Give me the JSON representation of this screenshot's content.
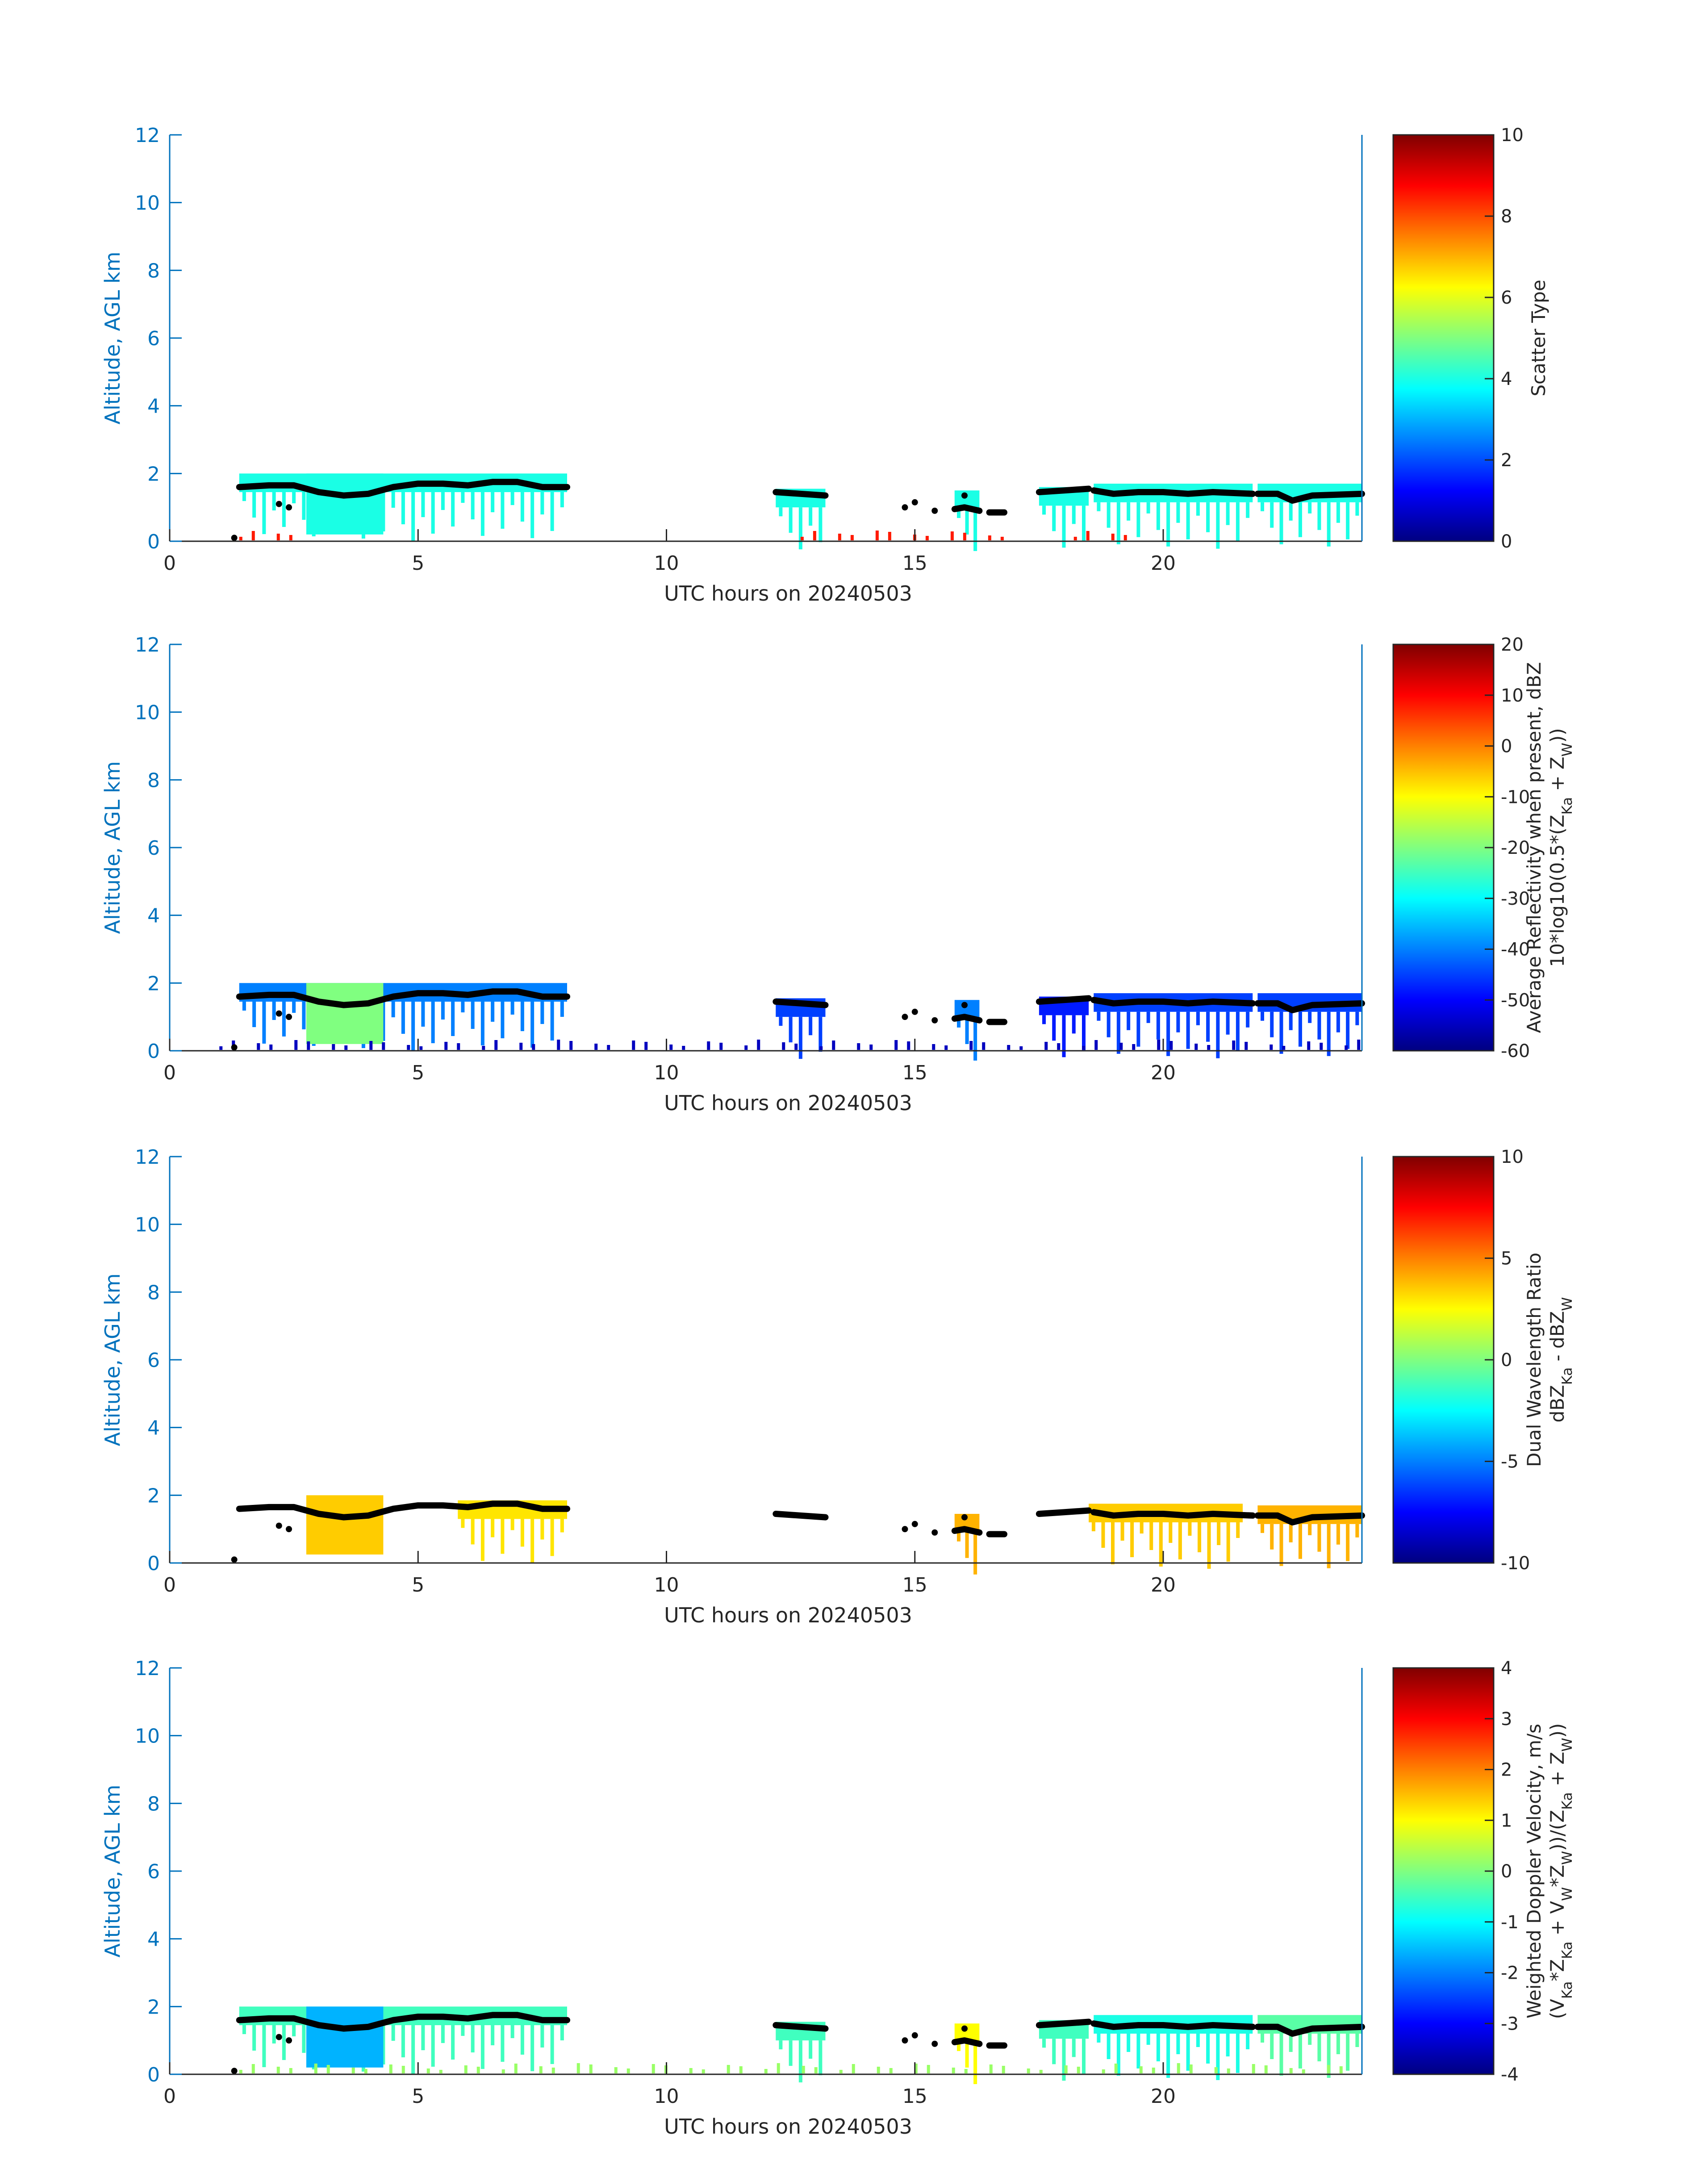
{
  "figure": {
    "date_label": "UTC hours on 20240503",
    "ylabel": "Altitude, AGL km"
  },
  "chart_data": [
    {
      "type": "heatmap",
      "xlabel": "UTC hours on 20240503",
      "ylabel": "Altitude, AGL km",
      "xlim": [
        0,
        24
      ],
      "ylim": [
        0,
        12
      ],
      "xticks": [
        0,
        5,
        10,
        15,
        20
      ],
      "yticks": [
        0,
        2,
        4,
        6,
        8,
        10,
        12
      ],
      "colorbar": {
        "label_lines": [
          "Scatter Type"
        ],
        "clim": [
          0,
          10
        ],
        "ticks": [
          0,
          2,
          4,
          6,
          8,
          10
        ],
        "tick_labels": [
          "0",
          "2",
          "4",
          "6",
          "8",
          "10"
        ],
        "colormap": "jet"
      },
      "cloud_segments": [
        {
          "x": [
            1.4,
            8.0
          ],
          "top": 2.0,
          "value": 4.0
        },
        {
          "x": [
            12.2,
            13.2
          ],
          "top": 1.55,
          "value": 4.0
        },
        {
          "x": [
            15.8,
            16.3
          ],
          "top": 1.5,
          "value": 4.0
        },
        {
          "x": [
            17.5,
            18.5
          ],
          "top": 1.6,
          "value": 4.0
        },
        {
          "x": [
            18.6,
            21.8
          ],
          "top": 1.7,
          "value": 4.0
        },
        {
          "x": [
            21.9,
            24.0
          ],
          "top": 1.7,
          "value": 4.0
        }
      ],
      "column_fills": [
        {
          "x": [
            2.75,
            4.3
          ],
          "bottom": 0.2,
          "top": 2.0,
          "value": 4.0
        }
      ],
      "ground_clutter": [
        {
          "x": [
            1.4,
            2.8
          ],
          "value": 8.5
        },
        {
          "x": [
            12.7,
            16.8
          ],
          "value": 8.5
        },
        {
          "x": [
            18.2,
            19.5
          ],
          "value": 8.5
        }
      ]
    },
    {
      "type": "heatmap",
      "xlabel": "UTC hours on 20240503",
      "ylabel": "Altitude, AGL km",
      "xlim": [
        0,
        24
      ],
      "ylim": [
        0,
        12
      ],
      "xticks": [
        0,
        5,
        10,
        15,
        20
      ],
      "yticks": [
        0,
        2,
        4,
        6,
        8,
        10,
        12
      ],
      "colorbar": {
        "label_lines": [
          "Average Reflectivity when present, dBZ",
          "10*log10(0.5*(Z_Ka + Z_W))"
        ],
        "clim": [
          -60,
          20
        ],
        "ticks": [
          -60,
          -50,
          -40,
          -30,
          -20,
          -10,
          0,
          10,
          20
        ],
        "tick_labels": [
          "-60",
          "-50",
          "-40",
          "-30",
          "-20",
          "-10",
          "0",
          "10",
          "20"
        ],
        "colormap": "jet"
      },
      "cloud_segments": [
        {
          "x": [
            1.4,
            8.0
          ],
          "top": 2.0,
          "value": -40
        },
        {
          "x": [
            12.2,
            13.2
          ],
          "top": 1.55,
          "value": -45
        },
        {
          "x": [
            15.8,
            16.3
          ],
          "top": 1.5,
          "value": -40
        },
        {
          "x": [
            17.5,
            18.5
          ],
          "top": 1.6,
          "value": -48
        },
        {
          "x": [
            18.6,
            21.8
          ],
          "top": 1.7,
          "value": -45
        },
        {
          "x": [
            21.9,
            24.0
          ],
          "top": 1.7,
          "value": -45
        }
      ],
      "column_fills": [
        {
          "x": [
            2.75,
            4.3
          ],
          "bottom": 0.2,
          "top": 2.0,
          "value": -20
        }
      ],
      "ground_clutter": [
        {
          "x": [
            1.0,
            24.0
          ],
          "value": -55
        }
      ]
    },
    {
      "type": "heatmap",
      "xlabel": "UTC hours on 20240503",
      "ylabel": "Altitude, AGL km",
      "xlim": [
        0,
        24
      ],
      "ylim": [
        0,
        12
      ],
      "xticks": [
        0,
        5,
        10,
        15,
        20
      ],
      "yticks": [
        0,
        2,
        4,
        6,
        8,
        10,
        12
      ],
      "colorbar": {
        "label_lines": [
          "Dual Wavelength Ratio",
          "dBZ_Ka - dBZ_W"
        ],
        "clim": [
          -10,
          10
        ],
        "ticks": [
          -10,
          -5,
          0,
          5,
          10
        ],
        "tick_labels": [
          "-10",
          "-5",
          "0",
          "5",
          "10"
        ],
        "colormap": "jet"
      },
      "cloud_segments": [
        {
          "x": [
            5.8,
            8.0
          ],
          "top": 1.85,
          "value": 3.0
        },
        {
          "x": [
            15.8,
            16.3
          ],
          "top": 1.45,
          "value": 4.0
        },
        {
          "x": [
            18.5,
            21.6
          ],
          "top": 1.75,
          "value": 3.5
        },
        {
          "x": [
            21.9,
            24.0
          ],
          "top": 1.7,
          "value": 4.0
        }
      ],
      "column_fills": [
        {
          "x": [
            2.75,
            4.3
          ],
          "bottom": 0.25,
          "top": 2.0,
          "value": 3.5
        }
      ],
      "ground_clutter": []
    },
    {
      "type": "heatmap",
      "xlabel": "UTC hours on 20240503",
      "ylabel": "Altitude, AGL km",
      "xlim": [
        0,
        24
      ],
      "ylim": [
        0,
        12
      ],
      "xticks": [
        0,
        5,
        10,
        15,
        20
      ],
      "yticks": [
        0,
        2,
        4,
        6,
        8,
        10,
        12
      ],
      "colorbar": {
        "label_lines": [
          "Weighted Doppler Velocity, m/s",
          "(V_Ka*Z_Ka + V_W*Z_W))/(Z_Ka + Z_W))"
        ],
        "clim": [
          -4,
          4
        ],
        "ticks": [
          -4,
          -3,
          -2,
          -1,
          0,
          1,
          2,
          3,
          4
        ],
        "tick_labels": [
          "-4",
          "-3",
          "-2",
          "-1",
          "0",
          "1",
          "2",
          "3",
          "4"
        ],
        "colormap": "jet"
      },
      "cloud_segments": [
        {
          "x": [
            1.4,
            8.0
          ],
          "top": 2.0,
          "value": -0.5
        },
        {
          "x": [
            12.2,
            13.2
          ],
          "top": 1.55,
          "value": -0.5
        },
        {
          "x": [
            15.8,
            16.3
          ],
          "top": 1.5,
          "value": 1.0
        },
        {
          "x": [
            17.5,
            18.5
          ],
          "top": 1.6,
          "value": -0.5
        },
        {
          "x": [
            18.6,
            21.8
          ],
          "top": 1.75,
          "value": -0.8
        },
        {
          "x": [
            21.9,
            24.0
          ],
          "top": 1.75,
          "value": -0.3
        }
      ],
      "column_fills": [
        {
          "x": [
            2.75,
            4.3
          ],
          "bottom": 0.2,
          "top": 2.0,
          "value": -1.6
        }
      ],
      "ground_clutter": [
        {
          "x": [
            1.4,
            24.0
          ],
          "value": 0.2
        }
      ]
    }
  ],
  "cloud_base": {
    "segments": [
      [
        [
          1.4,
          1.6
        ],
        [
          2.0,
          1.65
        ],
        [
          2.5,
          1.65
        ],
        [
          3.0,
          1.45
        ],
        [
          3.5,
          1.35
        ],
        [
          4.0,
          1.4
        ],
        [
          4.5,
          1.6
        ],
        [
          5.0,
          1.7
        ],
        [
          5.5,
          1.7
        ],
        [
          6.0,
          1.65
        ],
        [
          6.5,
          1.75
        ],
        [
          7.0,
          1.75
        ],
        [
          7.5,
          1.6
        ],
        [
          8.0,
          1.6
        ]
      ],
      [
        [
          12.2,
          1.45
        ],
        [
          12.7,
          1.4
        ],
        [
          13.2,
          1.35
        ]
      ],
      [
        [
          15.8,
          0.95
        ],
        [
          16.0,
          1.0
        ],
        [
          16.3,
          0.9
        ]
      ],
      [
        [
          16.5,
          0.85
        ],
        [
          16.8,
          0.85
        ]
      ],
      [
        [
          17.5,
          1.45
        ],
        [
          18.0,
          1.5
        ],
        [
          18.5,
          1.55
        ]
      ],
      [
        [
          18.6,
          1.5
        ],
        [
          19.0,
          1.4
        ],
        [
          19.5,
          1.45
        ],
        [
          20.0,
          1.45
        ],
        [
          20.5,
          1.4
        ],
        [
          21.0,
          1.45
        ],
        [
          21.8,
          1.4
        ]
      ],
      [
        [
          21.9,
          1.4
        ],
        [
          22.3,
          1.4
        ],
        [
          22.6,
          1.2
        ],
        [
          23.0,
          1.35
        ],
        [
          24.0,
          1.4
        ]
      ]
    ],
    "points": [
      [
        1.3,
        0.1
      ],
      [
        2.2,
        1.1
      ],
      [
        2.4,
        1.0
      ],
      [
        14.8,
        1.0
      ],
      [
        15.0,
        1.15
      ],
      [
        15.4,
        0.9
      ],
      [
        16.0,
        1.35
      ]
    ]
  }
}
